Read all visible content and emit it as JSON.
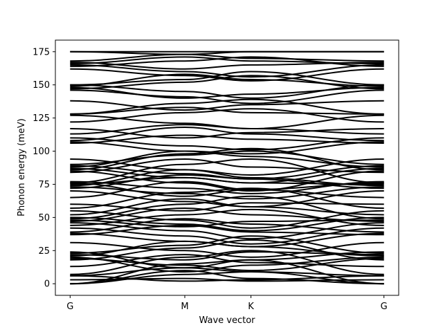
{
  "chart_data": {
    "type": "line",
    "title": "",
    "xlabel": "Wave vector",
    "ylabel": "Phonon energy (meV)",
    "x_ticks": [
      {
        "label": "G",
        "x": 0.0
      },
      {
        "label": "M",
        "x": 0.3654
      },
      {
        "label": "K",
        "x": 0.5762
      },
      {
        "label": "G",
        "x": 1.0
      }
    ],
    "xlim": [
      -0.047,
      1.047
    ],
    "ylim": [
      -8.75,
      183.75
    ],
    "y_ticks": [
      0,
      25,
      50,
      75,
      100,
      125,
      150,
      175
    ],
    "grid": false,
    "line_color": "#000000",
    "band_count": 72,
    "note_units": "meV",
    "bands": [
      [
        0,
        10,
        4,
        0
      ],
      [
        0,
        15,
        18,
        0
      ],
      [
        0,
        7,
        9,
        0
      ],
      [
        6,
        12,
        9,
        6
      ],
      [
        6,
        2,
        3,
        6
      ],
      [
        7,
        20,
        25,
        7
      ],
      [
        18,
        27,
        33,
        18
      ],
      [
        19,
        14,
        10,
        19
      ],
      [
        20,
        9,
        14,
        20
      ],
      [
        21,
        32,
        28,
        21
      ],
      [
        22,
        18,
        24,
        22
      ],
      [
        23,
        29,
        36,
        23
      ],
      [
        24,
        12,
        18,
        24
      ],
      [
        37,
        44,
        39,
        37
      ],
      [
        38,
        32,
        28,
        38
      ],
      [
        39,
        49,
        45,
        39
      ],
      [
        42,
        36,
        30,
        42
      ],
      [
        44,
        52,
        56,
        44
      ],
      [
        46,
        40,
        34,
        46
      ],
      [
        47,
        57,
        52,
        47
      ],
      [
        48,
        43,
        47,
        48
      ],
      [
        49,
        60,
        66,
        49
      ],
      [
        50,
        45,
        40,
        50
      ],
      [
        52,
        64,
        58,
        52
      ],
      [
        55,
        48,
        42,
        55
      ],
      [
        57,
        69,
        72,
        57
      ],
      [
        65,
        77,
        71,
        65
      ],
      [
        70,
        62,
        58,
        70
      ],
      [
        72,
        82,
        79,
        72
      ],
      [
        73,
        68,
        64,
        73
      ],
      [
        74,
        86,
        80,
        74
      ],
      [
        75,
        80,
        76,
        75
      ],
      [
        76,
        66,
        71,
        76
      ],
      [
        76,
        90,
        94,
        76
      ],
      [
        77,
        72,
        68,
        77
      ],
      [
        84,
        94,
        88,
        84
      ],
      [
        85,
        76,
        70,
        85
      ],
      [
        86,
        98,
        102,
        86
      ],
      [
        87,
        80,
        76,
        87
      ],
      [
        88,
        100,
        96,
        88
      ],
      [
        89,
        83,
        79,
        89
      ],
      [
        90,
        97,
        100,
        90
      ],
      [
        94,
        86,
        82,
        94
      ],
      [
        106,
        112,
        109,
        106
      ],
      [
        107,
        100,
        98,
        107
      ],
      [
        108,
        118,
        113,
        108
      ],
      [
        110,
        104,
        101,
        110
      ],
      [
        113,
        120,
        117,
        113
      ],
      [
        117,
        110,
        114,
        117
      ],
      [
        122,
        129,
        132,
        122
      ],
      [
        127,
        121,
        117,
        127
      ],
      [
        128,
        133,
        129,
        128
      ],
      [
        128,
        136,
        139,
        128
      ],
      [
        138,
        131,
        135,
        138
      ],
      [
        146,
        141,
        136,
        146
      ],
      [
        147,
        152,
        157,
        147
      ],
      [
        148,
        140,
        143,
        148
      ],
      [
        149,
        158,
        154,
        149
      ],
      [
        150,
        145,
        140,
        150
      ],
      [
        150,
        154,
        160,
        150
      ],
      [
        162,
        157,
        153,
        162
      ],
      [
        164,
        168,
        171,
        164
      ],
      [
        165,
        160,
        156,
        165
      ],
      [
        166,
        171,
        168,
        166
      ],
      [
        167,
        162,
        165,
        167
      ],
      [
        168,
        173,
        170,
        168
      ],
      [
        175,
        175,
        175,
        175
      ],
      [
        175,
        173,
        175,
        175
      ],
      [
        3,
        4,
        2,
        3
      ],
      [
        13,
        22,
        16,
        13
      ],
      [
        31,
        25,
        20,
        31
      ],
      [
        60,
        55,
        61,
        60
      ]
    ]
  }
}
